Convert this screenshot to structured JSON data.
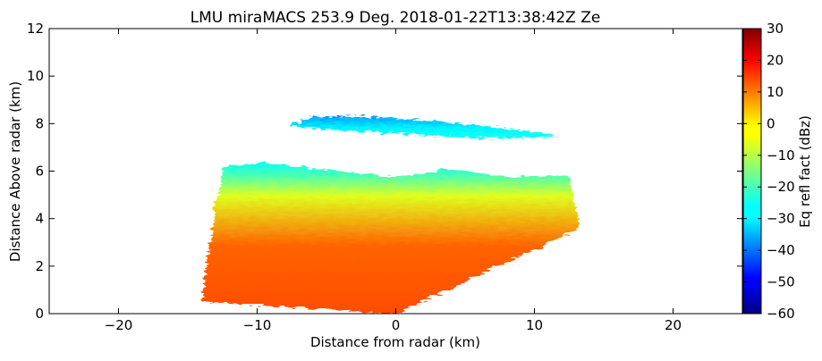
{
  "chart_data": {
    "type": "heatmap",
    "title": "LMU miraMACS 253.9 Deg. 2018-01-22T13:38:42Z  Ze",
    "xlabel": "Distance from radar (km)",
    "ylabel": "Distance Above radar  (km)",
    "xlim": [
      -25,
      25
    ],
    "ylim": [
      0,
      12
    ],
    "x_ticks": [
      -20,
      -10,
      0,
      10,
      20
    ],
    "y_ticks": [
      0,
      2,
      4,
      6,
      8,
      10,
      12
    ],
    "grid": false,
    "colorbar": {
      "label": "Eq refl fact (dBz)",
      "range": [
        -60,
        30
      ],
      "ticks": [
        30,
        20,
        10,
        0,
        -10,
        -20,
        -30,
        -40,
        -50,
        -60
      ],
      "colormap": "jet"
    },
    "regions": [
      {
        "name": "lower-cloud-layer",
        "polygon_km": [
          [
            -14,
            0.5
          ],
          [
            -13.6,
            2.3
          ],
          [
            -13,
            4.6
          ],
          [
            -12.3,
            6.2
          ],
          [
            -9.5,
            6.35
          ],
          [
            -5,
            6.05
          ],
          [
            0,
            5.75
          ],
          [
            4,
            6.1
          ],
          [
            8,
            5.75
          ],
          [
            12.5,
            5.8
          ],
          [
            13.3,
            3.6
          ],
          [
            0,
            0
          ]
        ],
        "core_dbz": 12,
        "edge_dbz": -25
      },
      {
        "name": "upper-cloud-layer",
        "polygon_km": [
          [
            -7.8,
            7.9
          ],
          [
            -6,
            8.3
          ],
          [
            -2,
            8.3
          ],
          [
            3,
            8.1
          ],
          [
            8,
            7.8
          ],
          [
            11.7,
            7.5
          ],
          [
            10,
            7.4
          ],
          [
            5,
            7.4
          ],
          [
            0,
            7.6
          ],
          [
            -4,
            7.7
          ]
        ],
        "core_dbz": -25,
        "edge_dbz": -38
      }
    ]
  }
}
